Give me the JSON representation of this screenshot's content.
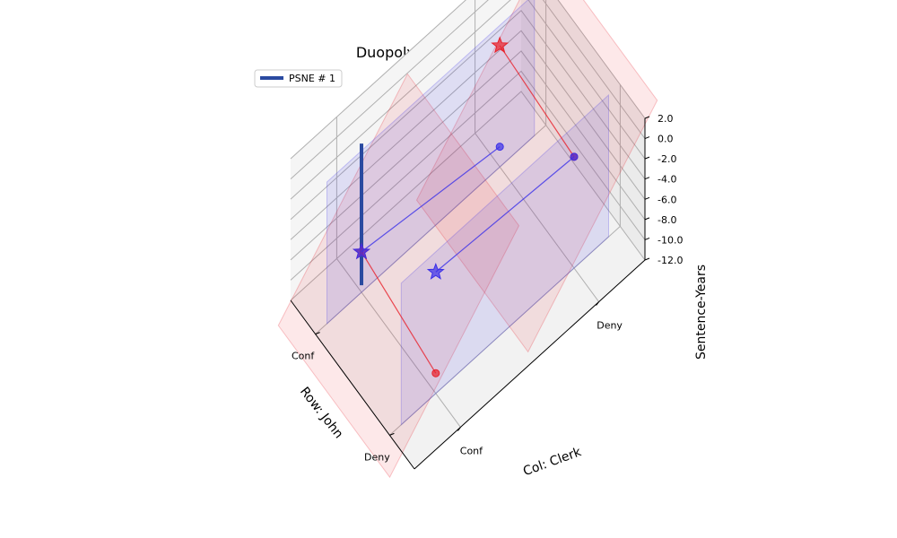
{
  "chart_data": {
    "type": "scatter",
    "projection": "3d",
    "title": "Duopoly: Prisoner's Dilemma",
    "xlabel": "Row: John",
    "ylabel": "Col: Clerk",
    "zlabel": "Sentence-Years",
    "row_categories": [
      "Conf",
      "Deny"
    ],
    "col_categories": [
      "Conf",
      "Deny"
    ],
    "zticks": [
      "-12.0",
      "-10.0",
      "-8.0",
      "-6.0",
      "-4.0",
      "-2.0",
      "0.0",
      "2.0"
    ],
    "zlim": [
      -12,
      2
    ],
    "legend": {
      "label": "PSNE # 1",
      "position": "top-left"
    },
    "colors": {
      "row_player": "#e8202a",
      "col_player": "#3a2fe8",
      "psne": "#2a4aa0"
    },
    "series": [
      {
        "player": "row",
        "values": [
          [
            -8,
            0
          ],
          [
            -10,
            -1
          ]
        ]
      },
      {
        "player": "col",
        "values": [
          [
            -8,
            -10
          ],
          [
            0,
            -1
          ]
        ]
      }
    ],
    "psne": [
      {
        "row": "Conf",
        "col": "Conf"
      }
    ],
    "best_responses": {
      "row": [
        {
          "row": "Conf",
          "col": "Conf"
        },
        {
          "row": "Conf",
          "col": "Deny"
        }
      ],
      "col": [
        {
          "row": "Conf",
          "col": "Conf"
        },
        {
          "row": "Deny",
          "col": "Conf"
        }
      ]
    }
  }
}
